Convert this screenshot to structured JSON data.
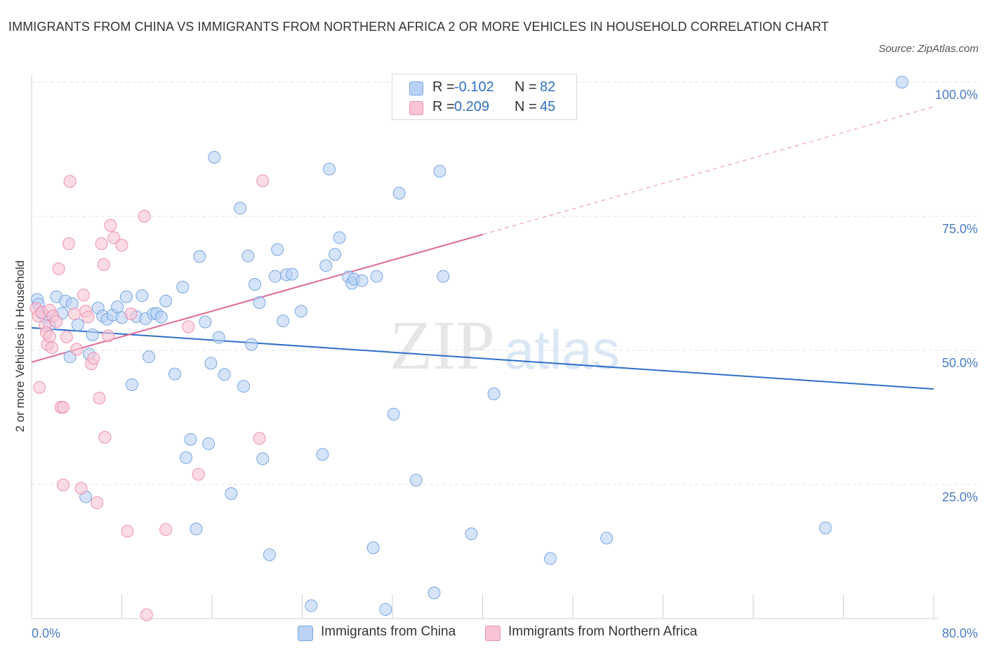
{
  "header": {
    "title": "IMMIGRANTS FROM CHINA VS IMMIGRANTS FROM NORTHERN AFRICA 2 OR MORE VEHICLES IN HOUSEHOLD CORRELATION CHART",
    "source": "Source: ZipAtlas.com"
  },
  "watermark": {
    "zip": "ZIP",
    "atlas": "atlas"
  },
  "legend": {
    "rows": [
      {
        "r_label": "R =",
        "r_value": "-0.102",
        "n_label": "N =",
        "n_value": "82"
      },
      {
        "r_label": "R =",
        "r_value": "0.209",
        "n_label": "N =",
        "n_value": "45"
      }
    ]
  },
  "bottom_legend": {
    "items": [
      "Immigrants from China",
      "Immigrants from Northern Africa"
    ]
  },
  "colors": {
    "china_fill": "#b9d2f5",
    "china_stroke": "#7aa6e0",
    "china_line": "#2f6fc9",
    "africa_fill": "#f8c4d4",
    "africa_stroke": "#ec92b0",
    "africa_line": "#e06a96",
    "tick_text": "#4a7cc7",
    "grid": "#e3e3e3"
  },
  "chart_data": {
    "type": "scatter",
    "title": "IMMIGRANTS FROM CHINA VS IMMIGRANTS FROM NORTHERN AFRICA 2 OR MORE VEHICLES IN HOUSEHOLD CORRELATION CHART",
    "xlabel": "",
    "ylabel": "2 or more Vehicles in Household",
    "xlim": [
      0,
      80
    ],
    "ylim": [
      0,
      100
    ],
    "x_tick_labels": [
      {
        "value": 0,
        "label": "0.0%"
      },
      {
        "value": 80,
        "label": "80.0%"
      }
    ],
    "y_tick_labels": [
      {
        "value": 25,
        "label": "25.0%"
      },
      {
        "value": 50,
        "label": "50.0%"
      },
      {
        "value": 75,
        "label": "75.0%"
      },
      {
        "value": 100,
        "label": "100.0%"
      }
    ],
    "grid": true,
    "legend_position": "top-center",
    "series": [
      {
        "name": "Immigrants from China",
        "r": -0.102,
        "n": 82,
        "trend": {
          "x": [
            0,
            80
          ],
          "y": [
            54.2,
            42.8
          ]
        },
        "points": [
          [
            0.5,
            59.5
          ],
          [
            0.6,
            58.6
          ],
          [
            0.9,
            56.9
          ],
          [
            1.2,
            56.3
          ],
          [
            1.6,
            54.7
          ],
          [
            2.2,
            60.0
          ],
          [
            2.7,
            56.9
          ],
          [
            3.0,
            59.2
          ],
          [
            3.4,
            48.8
          ],
          [
            3.6,
            58.7
          ],
          [
            4.1,
            54.8
          ],
          [
            4.8,
            22.7
          ],
          [
            5.1,
            49.3
          ],
          [
            5.4,
            52.9
          ],
          [
            5.9,
            57.9
          ],
          [
            6.3,
            56.4
          ],
          [
            6.7,
            55.8
          ],
          [
            7.2,
            56.6
          ],
          [
            7.6,
            58.1
          ],
          [
            8.0,
            56.1
          ],
          [
            8.4,
            60.0
          ],
          [
            8.9,
            43.6
          ],
          [
            9.3,
            56.3
          ],
          [
            9.8,
            60.2
          ],
          [
            10.1,
            55.9
          ],
          [
            10.4,
            48.8
          ],
          [
            10.8,
            56.8
          ],
          [
            11.1,
            56.9
          ],
          [
            11.5,
            56.2
          ],
          [
            11.9,
            59.2
          ],
          [
            12.7,
            45.6
          ],
          [
            13.4,
            61.8
          ],
          [
            13.7,
            30.0
          ],
          [
            14.1,
            33.4
          ],
          [
            14.6,
            16.7
          ],
          [
            14.9,
            67.5
          ],
          [
            15.4,
            55.3
          ],
          [
            15.7,
            32.6
          ],
          [
            15.9,
            47.6
          ],
          [
            16.2,
            86.0
          ],
          [
            16.6,
            52.4
          ],
          [
            17.1,
            45.5
          ],
          [
            17.7,
            23.3
          ],
          [
            18.5,
            76.5
          ],
          [
            18.8,
            43.3
          ],
          [
            19.2,
            67.6
          ],
          [
            19.5,
            51.1
          ],
          [
            19.8,
            62.3
          ],
          [
            20.2,
            58.9
          ],
          [
            20.5,
            29.8
          ],
          [
            21.1,
            11.9
          ],
          [
            21.6,
            63.8
          ],
          [
            21.8,
            68.8
          ],
          [
            22.3,
            55.5
          ],
          [
            22.6,
            64.1
          ],
          [
            23.1,
            64.2
          ],
          [
            23.9,
            57.3
          ],
          [
            24.8,
            2.4
          ],
          [
            25.8,
            30.6
          ],
          [
            26.1,
            65.8
          ],
          [
            26.4,
            83.8
          ],
          [
            26.9,
            67.9
          ],
          [
            27.3,
            71.0
          ],
          [
            28.1,
            63.7
          ],
          [
            28.4,
            62.5
          ],
          [
            28.6,
            63.3
          ],
          [
            29.3,
            63.0
          ],
          [
            30.3,
            13.2
          ],
          [
            30.6,
            63.8
          ],
          [
            31.4,
            1.7
          ],
          [
            32.1,
            38.1
          ],
          [
            32.6,
            79.3
          ],
          [
            34.1,
            25.8
          ],
          [
            35.7,
            4.8
          ],
          [
            36.2,
            83.4
          ],
          [
            36.5,
            63.8
          ],
          [
            39.0,
            15.8
          ],
          [
            41.0,
            41.9
          ],
          [
            46.0,
            11.2
          ],
          [
            51.0,
            15.0
          ],
          [
            70.4,
            16.9
          ],
          [
            77.2,
            100.0
          ]
        ]
      },
      {
        "name": "Immigrants from Northern Africa",
        "r": 0.209,
        "n": 45,
        "trend": {
          "x": [
            0,
            40
          ],
          "y": [
            47.8,
            71.6
          ]
        },
        "trend_extended": {
          "x": [
            40,
            80
          ],
          "y": [
            71.6,
            95.4
          ]
        },
        "points": [
          [
            0.4,
            57.8
          ],
          [
            0.6,
            56.4
          ],
          [
            0.7,
            43.1
          ],
          [
            0.9,
            57.1
          ],
          [
            1.2,
            54.6
          ],
          [
            1.3,
            53.3
          ],
          [
            1.4,
            51.1
          ],
          [
            1.6,
            57.5
          ],
          [
            1.6,
            52.6
          ],
          [
            1.8,
            50.5
          ],
          [
            1.9,
            56.4
          ],
          [
            2.2,
            55.4
          ],
          [
            2.4,
            65.2
          ],
          [
            2.6,
            39.4
          ],
          [
            2.8,
            24.9
          ],
          [
            2.8,
            39.4
          ],
          [
            3.1,
            52.5
          ],
          [
            3.3,
            69.9
          ],
          [
            3.4,
            81.5
          ],
          [
            3.8,
            56.8
          ],
          [
            4.0,
            50.2
          ],
          [
            4.4,
            24.3
          ],
          [
            4.6,
            60.3
          ],
          [
            4.8,
            57.3
          ],
          [
            5.0,
            56.2
          ],
          [
            5.3,
            47.5
          ],
          [
            5.5,
            48.5
          ],
          [
            5.8,
            21.6
          ],
          [
            6.0,
            41.1
          ],
          [
            6.2,
            69.9
          ],
          [
            6.4,
            66.0
          ],
          [
            6.5,
            33.8
          ],
          [
            6.8,
            52.7
          ],
          [
            7.0,
            73.3
          ],
          [
            7.3,
            71.0
          ],
          [
            8.0,
            69.6
          ],
          [
            8.5,
            16.3
          ],
          [
            8.8,
            56.8
          ],
          [
            10.0,
            75.0
          ],
          [
            10.2,
            0.7
          ],
          [
            11.9,
            16.6
          ],
          [
            13.9,
            54.4
          ],
          [
            14.8,
            26.9
          ],
          [
            20.2,
            33.6
          ],
          [
            20.5,
            81.6
          ]
        ]
      }
    ]
  }
}
